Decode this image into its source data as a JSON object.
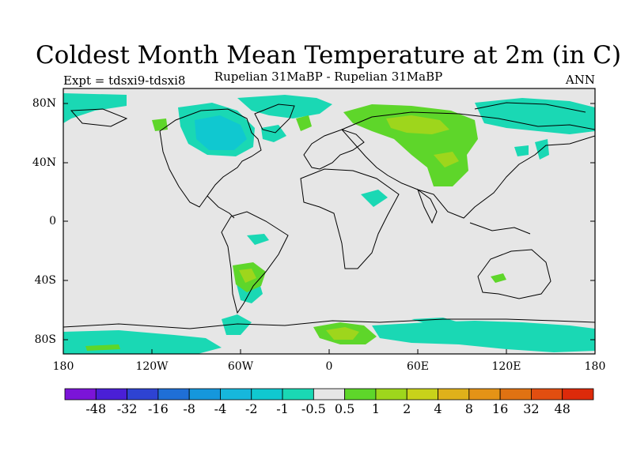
{
  "title": "Coldest Month Mean Temperature at 2m (in C)",
  "subtitle": "Rupelian  31MaBP - Rupelian  31MaBP",
  "expt": "Expt = tdsxi9-tdsxi8",
  "season": "ANN",
  "lat_labels": [
    "80N",
    "40N",
    "0",
    "40S",
    "80S"
  ],
  "lon_labels": [
    "180",
    "120W",
    "60W",
    "0",
    "60E",
    "120E",
    "180"
  ],
  "colorbar": {
    "labels": [
      "-48",
      "-32",
      "-16",
      "-8",
      "-4",
      "-2",
      "-1",
      "-0.5",
      "0.5",
      "1",
      "2",
      "4",
      "8",
      "16",
      "32",
      "48"
    ],
    "colors": [
      "#7b14d8",
      "#4a1fd6",
      "#2e43d2",
      "#1f6fd6",
      "#1597dc",
      "#16b7dc",
      "#10c8d0",
      "#1ad8b4",
      "#e6e6e6",
      "#5ed62a",
      "#9ed61c",
      "#c8d21a",
      "#dfb11a",
      "#e49316",
      "#e07212",
      "#e24e10",
      "#dd2a0a"
    ]
  },
  "colors": {
    "neutral": "#e6e6e6",
    "cool_light": "#1ad8b4",
    "cool_mid": "#10c8d0",
    "warm_light": "#5ed62a",
    "warm_mid": "#9ed61c"
  }
}
